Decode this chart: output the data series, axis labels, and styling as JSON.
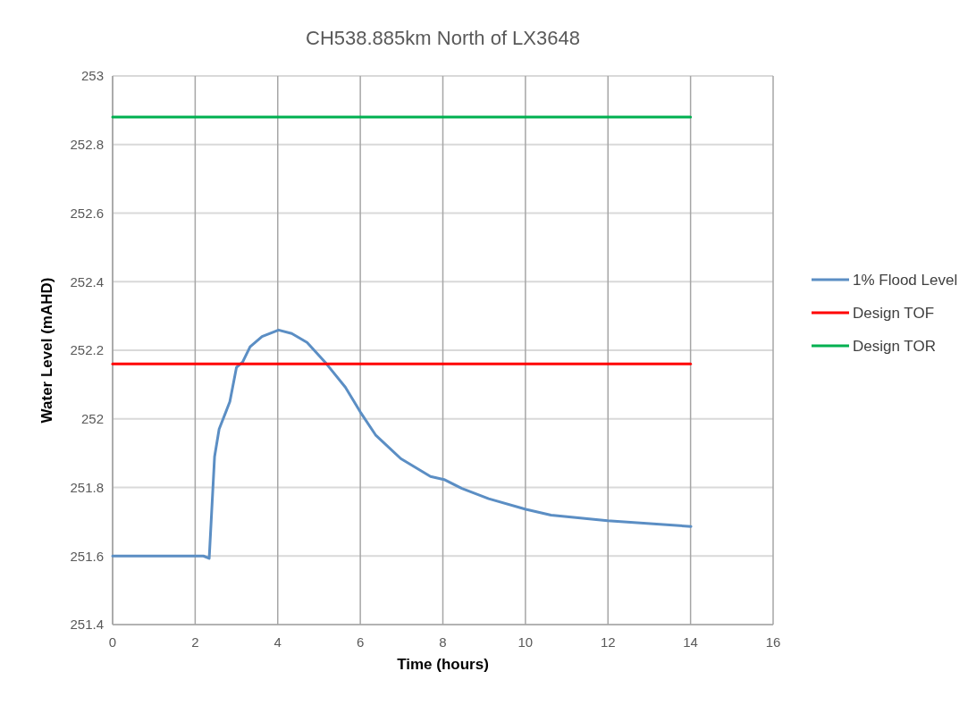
{
  "chart_data": {
    "type": "line",
    "title": "CH538.885km North of LX3648",
    "xlabel": "Time (hours)",
    "ylabel": "Water Level (mAHD)",
    "xlim": [
      0,
      16
    ],
    "xticks": [
      0,
      2,
      4,
      6,
      8,
      10,
      12,
      14,
      16
    ],
    "ylim": [
      251.4,
      253
    ],
    "yticks": [
      251.4,
      251.6,
      251.8,
      252,
      252.2,
      252.4,
      252.6,
      252.8,
      253
    ],
    "grid": true,
    "legend": "right",
    "marker": "none",
    "line_style": "solid",
    "series": [
      {
        "name": "1% Flood Level",
        "color": "#5b8ec4",
        "x": [
          0,
          2.2,
          2.34,
          2.47,
          2.58,
          2.84,
          3.0,
          3.15,
          3.33,
          3.62,
          4.02,
          4.34,
          4.71,
          5.17,
          5.64,
          6.0,
          6.37,
          6.98,
          7.7,
          8.03,
          8.46,
          9.11,
          10.01,
          10.62,
          11.99,
          14.01
        ],
        "values": [
          251.6,
          251.6,
          251.593,
          251.89,
          251.97,
          252.05,
          252.15,
          252.166,
          252.21,
          252.24,
          252.259,
          252.249,
          252.223,
          252.162,
          252.092,
          252.02,
          251.953,
          251.884,
          251.832,
          251.823,
          251.797,
          251.767,
          251.736,
          251.719,
          251.703,
          251.686
        ]
      },
      {
        "name": "Design TOF",
        "color": "#ff0000",
        "x": [
          0,
          14
        ],
        "values": [
          252.16,
          252.16
        ]
      },
      {
        "name": "Design TOR",
        "color": "#00b050",
        "x": [
          0,
          14
        ],
        "values": [
          252.88,
          252.88
        ]
      }
    ]
  }
}
